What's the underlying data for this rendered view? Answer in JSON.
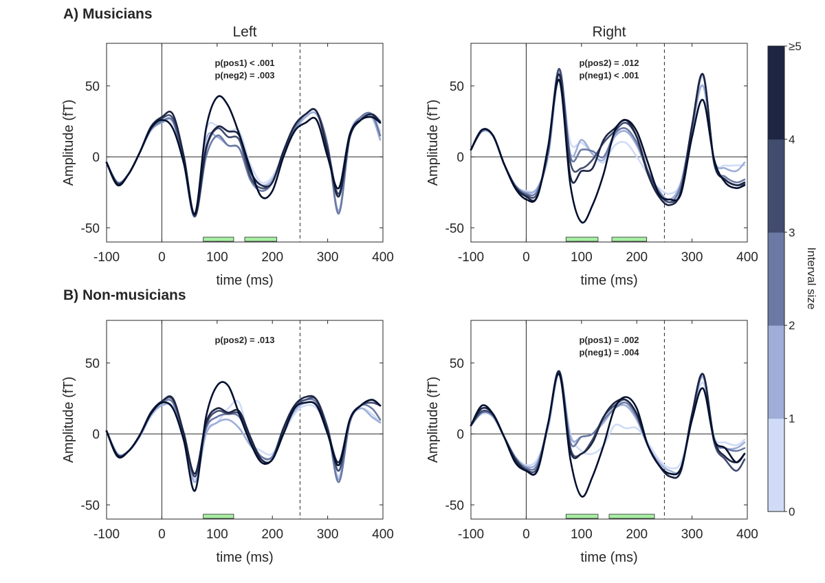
{
  "figure": {
    "headings": [
      "A) Musicians",
      "B) Non-musicians"
    ],
    "column_titles": [
      "Left",
      "Right"
    ]
  },
  "colors": {
    "levels": [
      "#d0dcf7",
      "#9eaed8",
      "#6b7aa4",
      "#414c6f",
      "#1d2543",
      "#02102e"
    ],
    "significance_bar": "#a8f0a4",
    "axis": "#262626"
  },
  "colorbar": {
    "title": "Interval size",
    "tick_labels": [
      "0",
      "1",
      "2",
      "3",
      "4",
      "≥5"
    ]
  },
  "chart_data": [
    {
      "type": "line",
      "group": "A) Musicians",
      "hemisphere": "Left",
      "xlabel": "time (ms)",
      "ylabel": "Amplitude (fT)",
      "xlim": [
        -100,
        400
      ],
      "ylim": [
        -60,
        80
      ],
      "xticks": [
        -100,
        0,
        100,
        200,
        300,
        400
      ],
      "yticks": [
        -50,
        0,
        50
      ],
      "vline_solid": 0,
      "vline_dashed": 250,
      "hline": 0,
      "annotations": [
        "p(pos1) < .001",
        "p(neg2) = .003"
      ],
      "significance_windows": [
        [
          75,
          130
        ],
        [
          150,
          208
        ]
      ],
      "x": [
        -100,
        -80,
        -60,
        -40,
        -20,
        0,
        20,
        40,
        60,
        80,
        100,
        120,
        140,
        160,
        180,
        200,
        220,
        240,
        260,
        280,
        300,
        320,
        340,
        360,
        380,
        395
      ],
      "series": [
        {
          "level": 0,
          "values": [
            -4,
            -18,
            -12,
            3,
            18,
            24,
            24,
            -5,
            -42,
            18,
            22,
            18,
            18,
            -5,
            -18,
            -14,
            2,
            18,
            28,
            30,
            8,
            -40,
            16,
            28,
            30,
            18
          ]
        },
        {
          "level": 1,
          "values": [
            -4,
            -18,
            -12,
            3,
            19,
            24,
            25,
            -5,
            -42,
            12,
            14,
            8,
            6,
            -12,
            -20,
            -16,
            2,
            18,
            28,
            30,
            8,
            -38,
            14,
            28,
            28,
            12
          ]
        },
        {
          "level": 2,
          "values": [
            -4,
            -18,
            -12,
            3,
            19,
            25,
            25,
            -4,
            -42,
            0,
            15,
            8,
            6,
            -16,
            -24,
            -18,
            4,
            20,
            30,
            32,
            8,
            -40,
            14,
            28,
            30,
            15
          ]
        },
        {
          "level": 3,
          "values": [
            -4,
            -19,
            -12,
            3,
            20,
            27,
            27,
            -2,
            -42,
            5,
            20,
            14,
            12,
            -14,
            -22,
            -18,
            4,
            22,
            30,
            32,
            6,
            -26,
            14,
            26,
            30,
            25
          ]
        },
        {
          "level": 4,
          "values": [
            -4,
            -19,
            -12,
            3,
            21,
            28,
            30,
            0,
            -41,
            6,
            21,
            18,
            15,
            -10,
            -20,
            -18,
            4,
            22,
            30,
            32,
            4,
            -28,
            14,
            26,
            30,
            24
          ]
        },
        {
          "level": 5,
          "values": [
            -4,
            -20,
            -12,
            3,
            20,
            26,
            20,
            -5,
            -40,
            20,
            42,
            36,
            16,
            -8,
            -28,
            -24,
            0,
            18,
            24,
            26,
            0,
            -22,
            16,
            26,
            28,
            24
          ]
        }
      ]
    },
    {
      "type": "line",
      "group": "A) Musicians",
      "hemisphere": "Right",
      "xlabel": "time (ms)",
      "ylabel": "Amplitude (fT)",
      "xlim": [
        -100,
        400
      ],
      "ylim": [
        -60,
        80
      ],
      "xticks": [
        -100,
        0,
        100,
        200,
        300,
        400
      ],
      "yticks": [
        -50,
        0,
        50
      ],
      "vline_solid": 0,
      "vline_dashed": 250,
      "hline": 0,
      "annotations": [
        "p(pos2) = .012",
        "p(neg1) < .001"
      ],
      "significance_windows": [
        [
          72,
          130
        ],
        [
          155,
          218
        ]
      ],
      "x": [
        -100,
        -80,
        -60,
        -40,
        -20,
        0,
        20,
        40,
        60,
        80,
        100,
        120,
        140,
        160,
        180,
        200,
        220,
        240,
        260,
        280,
        300,
        320,
        340,
        360,
        380,
        395
      ],
      "series": [
        {
          "level": 0,
          "values": [
            5,
            18,
            14,
            -5,
            -20,
            -24,
            -22,
            0,
            56,
            10,
            10,
            2,
            -4,
            8,
            10,
            0,
            -12,
            -22,
            -26,
            -18,
            18,
            56,
            -2,
            -6,
            -6,
            -6
          ]
        },
        {
          "level": 1,
          "values": [
            5,
            18,
            15,
            -5,
            -20,
            -25,
            -22,
            2,
            60,
            2,
            12,
            2,
            -2,
            14,
            18,
            8,
            -10,
            -24,
            -30,
            -18,
            20,
            50,
            -2,
            -8,
            -10,
            -4
          ]
        },
        {
          "level": 2,
          "values": [
            5,
            18,
            15,
            -5,
            -20,
            -26,
            -24,
            4,
            62,
            0,
            5,
            4,
            0,
            16,
            20,
            10,
            -10,
            -24,
            -32,
            -20,
            20,
            58,
            -5,
            -14,
            -18,
            -16
          ]
        },
        {
          "level": 3,
          "values": [
            5,
            19,
            15,
            -5,
            -21,
            -27,
            -26,
            5,
            62,
            -4,
            -8,
            -2,
            10,
            18,
            24,
            14,
            -10,
            -26,
            -32,
            -24,
            22,
            58,
            -4,
            -16,
            -20,
            -19
          ]
        },
        {
          "level": 4,
          "values": [
            5,
            19,
            15,
            -5,
            -21,
            -28,
            -28,
            8,
            58,
            -14,
            -10,
            -8,
            12,
            20,
            26,
            14,
            -12,
            -28,
            -34,
            -24,
            22,
            58,
            -4,
            -16,
            -20,
            -18
          ]
        },
        {
          "level": 5,
          "values": [
            5,
            19,
            15,
            -5,
            -22,
            -30,
            -28,
            8,
            54,
            -20,
            -46,
            -34,
            -12,
            18,
            26,
            18,
            -4,
            -26,
            -30,
            -26,
            14,
            40,
            -2,
            -18,
            -22,
            -20
          ]
        }
      ]
    },
    {
      "type": "line",
      "group": "B) Non-musicians",
      "hemisphere": "Left",
      "xlabel": "time (ms)",
      "ylabel": "Amplitude (fT)",
      "xlim": [
        -100,
        400
      ],
      "ylim": [
        -60,
        80
      ],
      "xticks": [
        -100,
        0,
        100,
        200,
        300,
        400
      ],
      "yticks": [
        -50,
        0,
        50
      ],
      "vline_solid": 0,
      "vline_dashed": 250,
      "hline": 0,
      "annotations": [
        "p(pos2) = .013"
      ],
      "significance_windows": [
        [
          75,
          130
        ]
      ],
      "x": [
        -100,
        -80,
        -60,
        -40,
        -20,
        0,
        20,
        40,
        60,
        80,
        100,
        120,
        140,
        160,
        180,
        200,
        220,
        240,
        260,
        280,
        300,
        320,
        340,
        360,
        380,
        395
      ],
      "series": [
        {
          "level": 0,
          "values": [
            2,
            -14,
            -12,
            -2,
            12,
            20,
            18,
            -5,
            -32,
            2,
            8,
            18,
            22,
            -5,
            -12,
            -14,
            0,
            14,
            20,
            18,
            4,
            -30,
            10,
            18,
            14,
            8
          ]
        },
        {
          "level": 1,
          "values": [
            2,
            -14,
            -12,
            -2,
            13,
            20,
            19,
            -4,
            -34,
            0,
            8,
            10,
            4,
            -8,
            -16,
            -16,
            2,
            16,
            22,
            20,
            4,
            -32,
            8,
            18,
            12,
            8
          ]
        },
        {
          "level": 2,
          "values": [
            2,
            -15,
            -12,
            -1,
            14,
            22,
            22,
            -2,
            -30,
            4,
            12,
            14,
            12,
            -4,
            -16,
            -16,
            4,
            18,
            24,
            22,
            4,
            -34,
            8,
            20,
            18,
            10
          ]
        },
        {
          "level": 3,
          "values": [
            2,
            -15,
            -12,
            -1,
            15,
            23,
            24,
            0,
            -30,
            6,
            16,
            14,
            14,
            -4,
            -18,
            -18,
            4,
            20,
            24,
            24,
            4,
            -26,
            10,
            20,
            22,
            20
          ]
        },
        {
          "level": 4,
          "values": [
            2,
            -15,
            -12,
            -1,
            15,
            23,
            25,
            0,
            -28,
            8,
            18,
            15,
            16,
            -2,
            -18,
            -18,
            4,
            20,
            26,
            24,
            2,
            -20,
            10,
            20,
            24,
            20
          ]
        },
        {
          "level": 5,
          "values": [
            2,
            -16,
            -12,
            -1,
            14,
            22,
            18,
            -5,
            -40,
            12,
            34,
            34,
            14,
            -6,
            -20,
            -18,
            0,
            18,
            22,
            20,
            0,
            -22,
            10,
            20,
            24,
            20
          ]
        }
      ]
    },
    {
      "type": "line",
      "group": "B) Non-musicians",
      "hemisphere": "Right",
      "xlabel": "time (ms)",
      "ylabel": "Amplitude (fT)",
      "xlim": [
        -100,
        400
      ],
      "ylim": [
        -60,
        80
      ],
      "xticks": [
        -100,
        0,
        100,
        200,
        300,
        400
      ],
      "yticks": [
        -50,
        0,
        50
      ],
      "vline_solid": 0,
      "vline_dashed": 250,
      "hline": 0,
      "annotations": [
        "p(pos1) = .002",
        "p(neg1) = .004"
      ],
      "significance_windows": [
        [
          72,
          130
        ],
        [
          150,
          232
        ]
      ],
      "x": [
        -100,
        -80,
        -60,
        -40,
        -20,
        0,
        20,
        40,
        60,
        80,
        100,
        120,
        140,
        160,
        180,
        200,
        220,
        240,
        260,
        280,
        300,
        320,
        340,
        360,
        380,
        395
      ],
      "series": [
        {
          "level": 0,
          "values": [
            6,
            14,
            12,
            -2,
            -16,
            -22,
            -18,
            4,
            42,
            0,
            -12,
            -14,
            -8,
            6,
            4,
            4,
            -6,
            -18,
            -24,
            -20,
            10,
            36,
            -2,
            -6,
            -8,
            -4
          ]
        },
        {
          "level": 1,
          "values": [
            6,
            15,
            12,
            -2,
            -16,
            -23,
            -20,
            6,
            44,
            -2,
            -2,
            0,
            8,
            18,
            20,
            10,
            -8,
            -20,
            -26,
            -24,
            12,
            40,
            -4,
            -10,
            -10,
            -6
          ]
        },
        {
          "level": 2,
          "values": [
            6,
            15,
            13,
            -2,
            -17,
            -24,
            -22,
            8,
            44,
            -6,
            -2,
            0,
            10,
            18,
            22,
            12,
            -8,
            -22,
            -28,
            -24,
            12,
            42,
            -4,
            -10,
            -12,
            -10
          ]
        },
        {
          "level": 3,
          "values": [
            6,
            16,
            13,
            -2,
            -17,
            -25,
            -24,
            8,
            44,
            -10,
            -14,
            -4,
            12,
            20,
            24,
            14,
            -8,
            -22,
            -30,
            -26,
            14,
            42,
            -6,
            -18,
            -26,
            -18
          ]
        },
        {
          "level": 4,
          "values": [
            6,
            18,
            14,
            -2,
            -18,
            -26,
            -26,
            8,
            44,
            -12,
            -14,
            -6,
            12,
            22,
            24,
            14,
            -8,
            -22,
            -30,
            -26,
            14,
            42,
            -4,
            -16,
            -20,
            -14
          ]
        },
        {
          "level": 5,
          "values": [
            6,
            20,
            14,
            -2,
            -20,
            -26,
            -26,
            8,
            42,
            -18,
            -44,
            -30,
            -8,
            18,
            26,
            18,
            -8,
            -22,
            -28,
            -24,
            10,
            32,
            -4,
            -10,
            -20,
            -14
          ]
        }
      ]
    }
  ]
}
